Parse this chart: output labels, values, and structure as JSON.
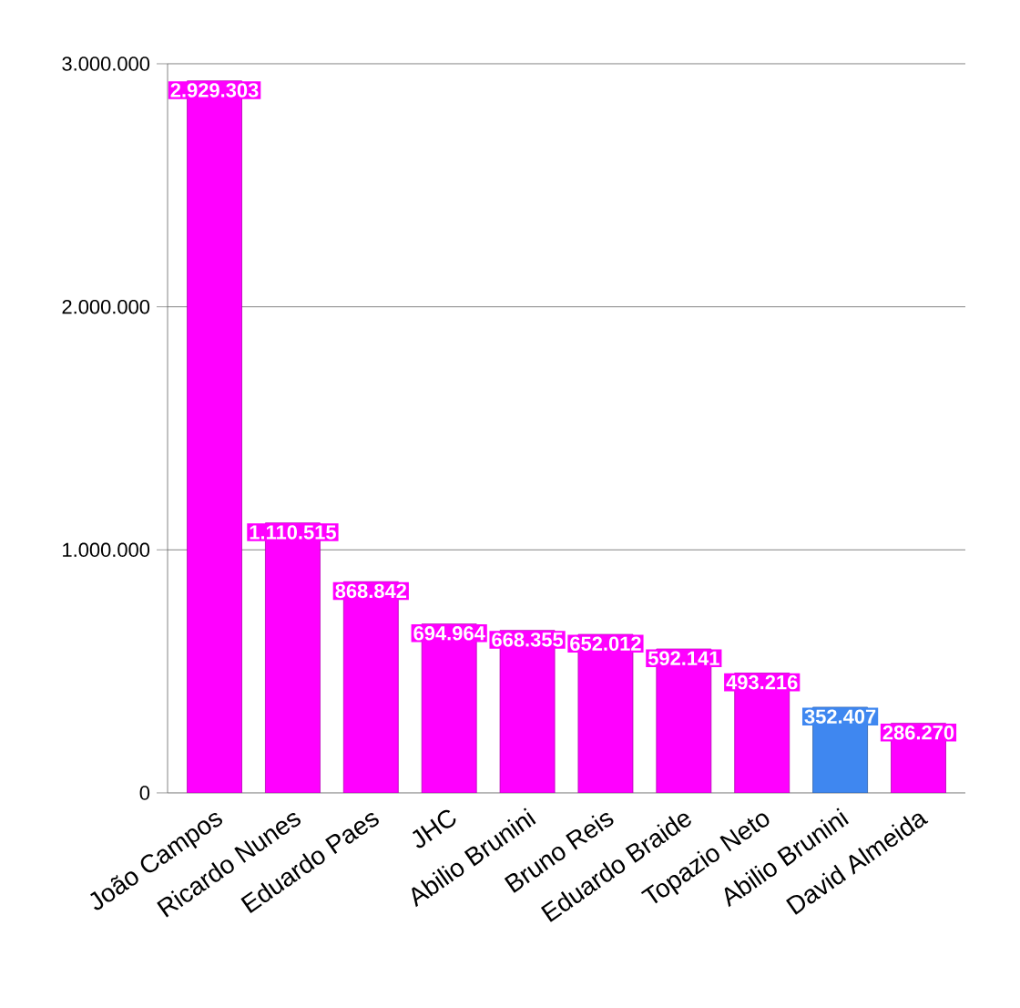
{
  "chart_data": {
    "type": "bar",
    "categories": [
      "João Campos",
      "Ricardo Nunes",
      "Eduardo Paes",
      "JHC",
      "Abilio Brunini",
      "Bruno Reis",
      "Eduardo Braide",
      "Topazio Neto",
      "Abilio Brunini",
      "David Almeida"
    ],
    "values": [
      2929303,
      1110515,
      868842,
      694964,
      668355,
      652012,
      592141,
      493216,
      352407,
      286270
    ],
    "colors": [
      "#ff00ff",
      "#ff00ff",
      "#ff00ff",
      "#ff00ff",
      "#ff00ff",
      "#ff00ff",
      "#ff00ff",
      "#ff00ff",
      "#3f87f0",
      "#ff00ff"
    ],
    "value_labels": [
      "2.929.303",
      "1.110.515",
      "868.842",
      "694.964",
      "668.355",
      "652.012",
      "592.141",
      "493.216",
      "352.407",
      "286.270"
    ],
    "ylim": [
      0,
      3000000
    ],
    "yticks": [
      {
        "value": 0,
        "label": "0"
      },
      {
        "value": 1000000,
        "label": "1.000.000"
      },
      {
        "value": 2000000,
        "label": "2.000.000"
      },
      {
        "value": 3000000,
        "label": "3.000.000"
      }
    ],
    "grid": "y"
  }
}
